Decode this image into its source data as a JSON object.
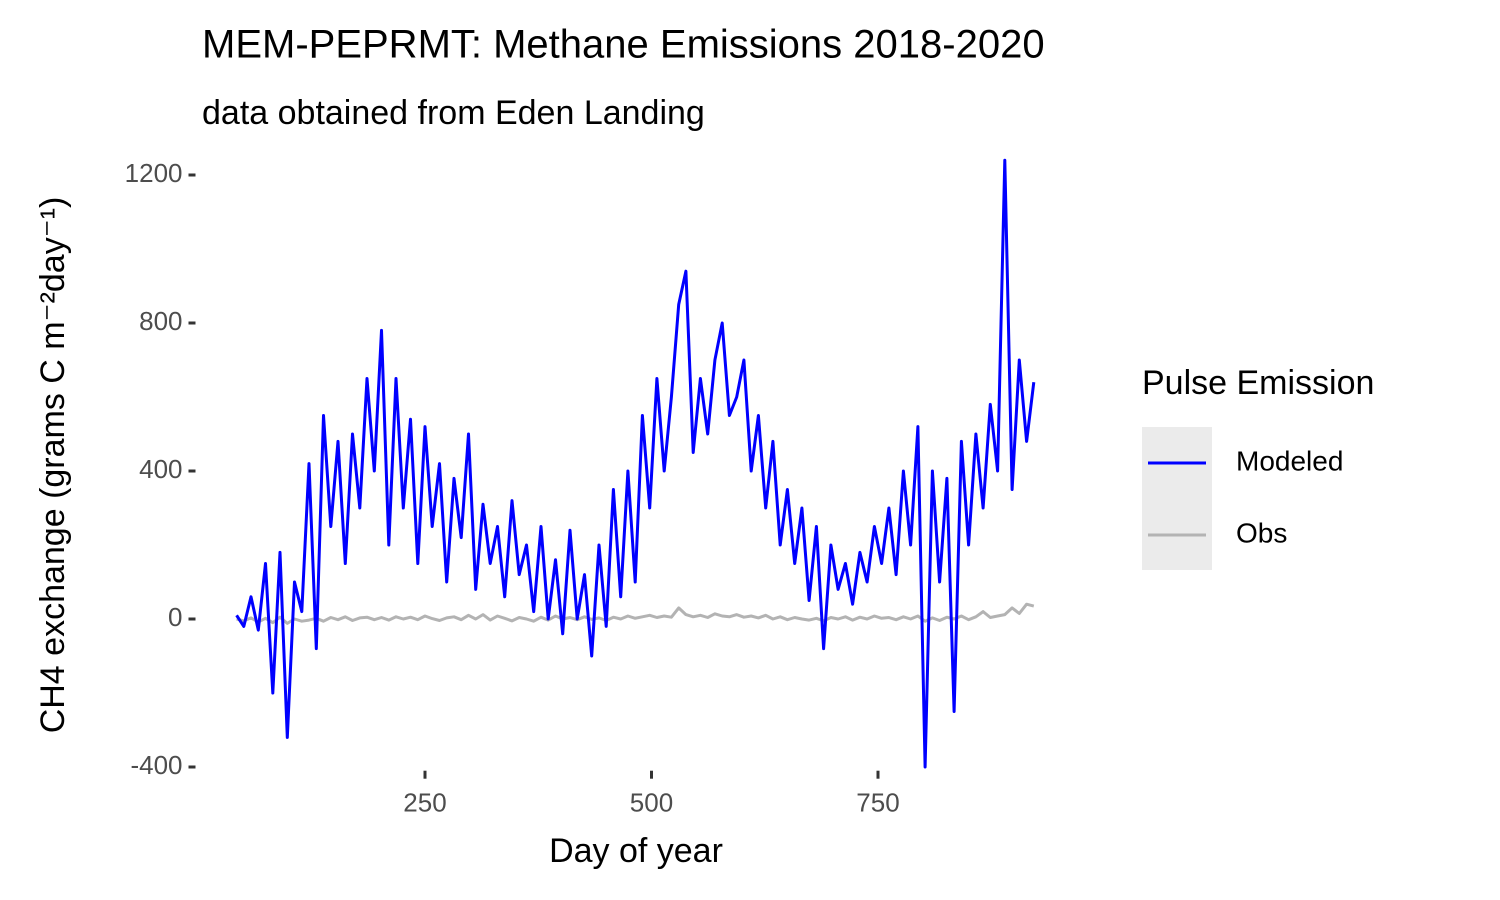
{
  "chart_data": {
    "type": "line",
    "title": "MEM-PEPRMT: Methane Emissions 2018-2020",
    "subtitle": "data obtained from Eden Landing",
    "x_label": "Day of year",
    "y_label": "CH4 exchange (grams C m⁻²day⁻¹)",
    "legend_title": "Pulse Emission",
    "x": [
      42,
      50,
      58,
      66,
      74,
      82,
      90,
      98,
      106,
      114,
      122,
      130,
      138,
      146,
      154,
      162,
      170,
      178,
      186,
      194,
      202,
      210,
      218,
      226,
      234,
      242,
      250,
      258,
      266,
      274,
      282,
      290,
      298,
      306,
      314,
      322,
      330,
      338,
      346,
      354,
      362,
      370,
      378,
      386,
      394,
      402,
      410,
      418,
      426,
      434,
      442,
      450,
      458,
      466,
      474,
      482,
      490,
      498,
      506,
      514,
      522,
      530,
      538,
      546,
      554,
      562,
      570,
      578,
      586,
      594,
      602,
      610,
      618,
      626,
      634,
      642,
      650,
      658,
      666,
      674,
      682,
      690,
      698,
      706,
      714,
      722,
      730,
      738,
      746,
      754,
      762,
      770,
      778,
      786,
      794,
      802,
      810,
      818,
      826,
      834,
      842,
      850,
      858,
      866,
      874,
      882,
      890,
      898,
      906,
      914,
      922
    ],
    "series": [
      {
        "name": "Modeled",
        "color": "#0000ff",
        "values": [
          10,
          -20,
          60,
          -30,
          150,
          -200,
          180,
          -320,
          100,
          20,
          420,
          -80,
          550,
          250,
          480,
          150,
          500,
          300,
          650,
          400,
          780,
          200,
          650,
          300,
          540,
          150,
          520,
          250,
          420,
          100,
          380,
          220,
          500,
          80,
          310,
          150,
          250,
          60,
          320,
          120,
          200,
          20,
          250,
          0,
          160,
          -40,
          240,
          0,
          120,
          -100,
          200,
          -20,
          350,
          60,
          400,
          100,
          550,
          300,
          650,
          400,
          600,
          850,
          940,
          450,
          650,
          500,
          700,
          800,
          550,
          600,
          700,
          400,
          550,
          300,
          480,
          200,
          350,
          150,
          300,
          50,
          250,
          -80,
          200,
          80,
          150,
          40,
          180,
          100,
          250,
          150,
          300,
          120,
          400,
          200,
          520,
          -400,
          400,
          100,
          380,
          -250,
          480,
          200,
          500,
          300,
          580,
          400,
          1240,
          350,
          700,
          480,
          640
        ]
      },
      {
        "name": "Obs",
        "color": "#b3b3b3",
        "values": [
          0,
          -5,
          3,
          -8,
          2,
          -10,
          5,
          -12,
          0,
          -6,
          -3,
          2,
          -6,
          4,
          -2,
          6,
          -4,
          3,
          5,
          -2,
          4,
          -3,
          6,
          0,
          5,
          -2,
          8,
          1,
          -4,
          3,
          6,
          -2,
          10,
          0,
          12,
          -3,
          8,
          2,
          -5,
          4,
          0,
          -6,
          5,
          -3,
          8,
          0,
          4,
          -2,
          6,
          -1,
          3,
          -4,
          5,
          0,
          8,
          2,
          6,
          10,
          4,
          8,
          5,
          30,
          12,
          6,
          10,
          4,
          14,
          8,
          6,
          12,
          5,
          8,
          3,
          10,
          0,
          6,
          -2,
          4,
          0,
          -3,
          2,
          -5,
          4,
          0,
          6,
          -3,
          5,
          0,
          8,
          2,
          4,
          -2,
          6,
          0,
          8,
          -6,
          3,
          -4,
          5,
          0,
          8,
          -2,
          6,
          20,
          4,
          8,
          12,
          30,
          15,
          40,
          35
        ]
      }
    ],
    "xlim": [
      0,
      966
    ],
    "xticks": [
      250,
      500,
      750
    ],
    "ylim": [
      -410,
      1250
    ],
    "yticks": [
      -400,
      0,
      400,
      800,
      1200
    ],
    "grid": false,
    "legend_position": "right"
  }
}
